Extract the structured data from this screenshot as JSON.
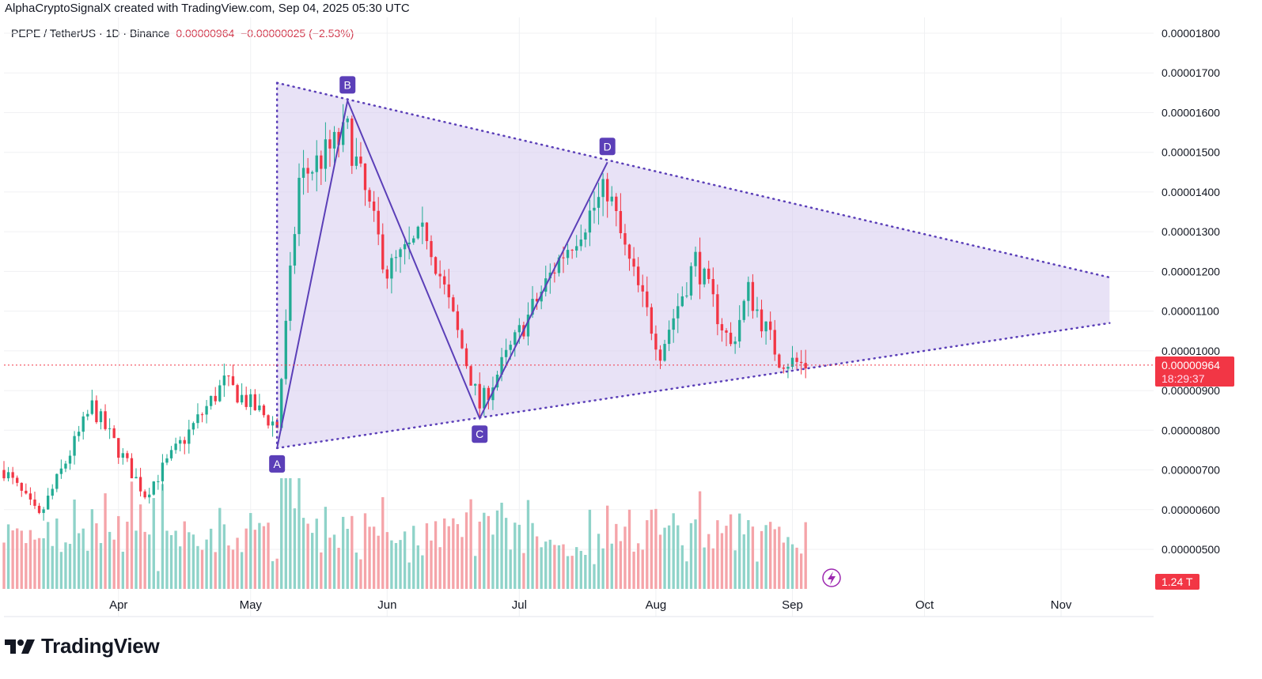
{
  "attribution": "AlphaCryptoSignalX created with TradingView.com, Sep 04, 2025 05:30 UTC",
  "symbol_bar": {
    "pair": "PEPE / TetherUS",
    "interval": "1D",
    "exchange": "Binance",
    "separator": "·",
    "last_price": "0.00000964",
    "change": "−0.00000025",
    "change_pct": "(−2.53%)"
  },
  "price_badge": {
    "price": "0.00000964",
    "countdown": "18:29:37",
    "color": "#f23645"
  },
  "volume_badge": {
    "text": "1.24 T",
    "color": "#f23645"
  },
  "logo": {
    "text": "TradingView"
  },
  "colors": {
    "up": "#22ab94",
    "down": "#f23645",
    "volume_up": "#8fd3c9",
    "volume_down": "#f5a4a9",
    "pattern_fill": "#d8cff0",
    "pattern_line": "#5b3fb8",
    "point_label_bg": "#5b3fb8",
    "price_line": "#f23645",
    "grid": "#f0f1f3"
  },
  "icons": {
    "lightning": "lightning-icon"
  },
  "chart_data": {
    "type": "candlestick",
    "title": "",
    "y_axis": {
      "ticks": [
        "0.00000500",
        "0.00000600",
        "0.00000700",
        "0.00000800",
        "0.00000900",
        "0.00001000",
        "0.00001100",
        "0.00001200",
        "0.00001300",
        "0.00001400",
        "0.00001500",
        "0.00001600",
        "0.00001700",
        "0.00001800"
      ],
      "range": [
        4.6e-06,
        1.82e-05
      ]
    },
    "x_axis": {
      "ticks": [
        "Apr",
        "May",
        "Jun",
        "Jul",
        "Aug",
        "Sep",
        "Oct",
        "Nov"
      ],
      "range": [
        "2025-03-06",
        "2025-11-22"
      ]
    },
    "current_price": 9.64e-06,
    "price_line": 9.64e-06,
    "pattern": {
      "name": "",
      "points": [
        {
          "label": "A",
          "date": "2025-05-07",
          "price": 7.55e-06
        },
        {
          "label": "B",
          "date": "2025-05-23",
          "price": 1.63e-05
        },
        {
          "label": "C",
          "date": "2025-06-22",
          "price": 8.3e-06
        },
        {
          "label": "D",
          "date": "2025-07-21",
          "price": 1.475e-05
        }
      ],
      "upper_trendline": [
        [
          "2025-05-07",
          1.675e-05
        ],
        [
          "2025-11-12",
          1.185e-05
        ]
      ],
      "lower_trendline": [
        [
          "2025-05-07",
          7.55e-06
        ],
        [
          "2025-11-12",
          1.07e-05
        ]
      ]
    },
    "key_prices": [
      {
        "date": "2025-03-06",
        "price": 7e-06
      },
      {
        "date": "2025-03-14",
        "price": 5.8e-06
      },
      {
        "date": "2025-03-26",
        "price": 8.6e-06
      },
      {
        "date": "2025-04-07",
        "price": 6.4e-06
      },
      {
        "date": "2025-04-25",
        "price": 9.2e-06
      },
      {
        "date": "2025-05-07",
        "price": 8.1e-06
      },
      {
        "date": "2025-05-12",
        "price": 1.43e-05
      },
      {
        "date": "2025-05-23",
        "price": 1.55e-05
      },
      {
        "date": "2025-06-01",
        "price": 1.2e-05
      },
      {
        "date": "2025-06-10",
        "price": 1.3e-05
      },
      {
        "date": "2025-06-22",
        "price": 8.6e-06
      },
      {
        "date": "2025-07-10",
        "price": 1.23e-05
      },
      {
        "date": "2025-07-21",
        "price": 1.41e-05
      },
      {
        "date": "2025-07-25",
        "price": 1.25e-05
      },
      {
        "date": "2025-08-02",
        "price": 1e-05
      },
      {
        "date": "2025-08-10",
        "price": 1.23e-05
      },
      {
        "date": "2025-08-18",
        "price": 1.01e-05
      },
      {
        "date": "2025-08-22",
        "price": 1.15e-05
      },
      {
        "date": "2025-08-29",
        "price": 9.8e-06
      },
      {
        "date": "2025-09-04",
        "price": 9.64e-06
      }
    ],
    "volume_last": "1.24 T"
  }
}
